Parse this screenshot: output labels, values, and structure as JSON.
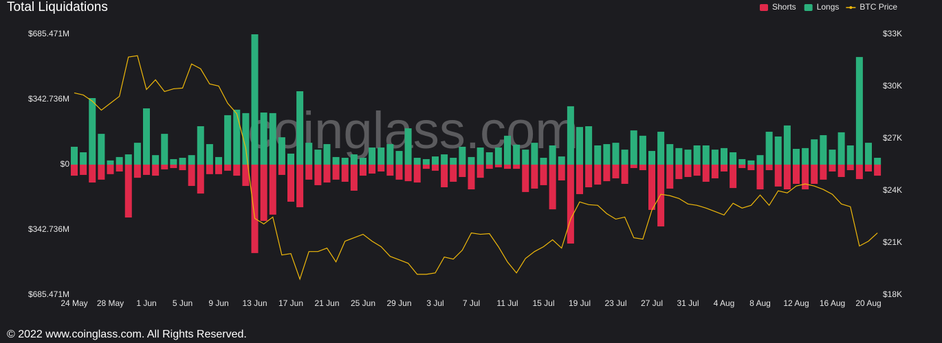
{
  "chart_data": {
    "type": "bar",
    "title": "Total Liquidations",
    "watermark": "coinglass.com",
    "footer": "© 2022 www.coinglass.com. All Rights Reserved.",
    "categories": [
      "24 May",
      null,
      null,
      null,
      "28 May",
      null,
      null,
      null,
      "1 Jun",
      null,
      null,
      null,
      "5 Jun",
      null,
      null,
      null,
      "9 Jun",
      null,
      null,
      null,
      "13 Jun",
      null,
      null,
      null,
      "17 Jun",
      null,
      null,
      null,
      "21 Jun",
      null,
      null,
      null,
      "25 Jun",
      null,
      null,
      null,
      "29 Jun",
      null,
      null,
      null,
      "3 Jul",
      null,
      null,
      null,
      "7 Jul",
      null,
      null,
      null,
      "11 Jul",
      null,
      null,
      null,
      "15 Jul",
      null,
      null,
      null,
      "19 Jul",
      null,
      null,
      null,
      "23 Jul",
      null,
      null,
      null,
      "27 Jul",
      null,
      null,
      null,
      "31 Jul",
      null,
      null,
      null,
      "4 Aug",
      null,
      null,
      null,
      "8 Aug",
      null,
      null,
      null,
      "12 Aug",
      null,
      null,
      null,
      "16 Aug",
      null,
      null,
      null,
      "20 Aug",
      null
    ],
    "series": [
      {
        "name": "Shorts",
        "color": "#e0294a",
        "values": [
          -58,
          -54,
          -94,
          -79,
          -50,
          -36,
          -278,
          -69,
          -54,
          -58,
          -25,
          -18,
          -29,
          -112,
          -152,
          -50,
          -50,
          -32,
          -58,
          -112,
          -465,
          -296,
          -263,
          -54,
          -195,
          -224,
          -79,
          -108,
          -94,
          -79,
          -90,
          -137,
          -58,
          -47,
          -36,
          -58,
          -79,
          -87,
          -94,
          -22,
          -32,
          -119,
          -90,
          -65,
          -130,
          -69,
          -22,
          -14,
          -22,
          -22,
          -144,
          -126,
          -108,
          -235,
          -83,
          -415,
          -155,
          -119,
          -105,
          -87,
          -72,
          -101,
          -18,
          -29,
          -238,
          -325,
          -126,
          -76,
          -65,
          -58,
          -90,
          -72,
          -36,
          -123,
          -18,
          -29,
          -130,
          -29,
          -115,
          -130,
          -101,
          -130,
          -101,
          -79,
          -36,
          -65,
          -29,
          -76,
          -36,
          -58
        ]
      },
      {
        "name": "Longs",
        "color": "#2bb07c",
        "values": [
          94,
          65,
          350,
          162,
          22,
          40,
          54,
          115,
          296,
          50,
          162,
          29,
          36,
          50,
          202,
          108,
          40,
          260,
          289,
          271,
          685.471,
          274,
          271,
          144,
          58,
          386,
          115,
          79,
          108,
          40,
          36,
          54,
          36,
          90,
          90,
          108,
          72,
          191,
          36,
          29,
          43,
          54,
          36,
          94,
          40,
          90,
          65,
          90,
          152,
          105,
          79,
          115,
          36,
          101,
          43,
          307,
          198,
          202,
          101,
          108,
          115,
          79,
          180,
          152,
          72,
          173,
          108,
          87,
          79,
          101,
          101,
          79,
          87,
          65,
          29,
          22,
          50,
          173,
          148,
          206,
          83,
          87,
          133,
          155,
          79,
          170,
          101,
          566,
          115,
          36
        ]
      },
      {
        "name": "BTC Price",
        "color": "#f0b90b",
        "axis": "y2",
        "values": [
          29627,
          29508,
          29151,
          28635,
          29032,
          29429,
          31690,
          31770,
          29825,
          30381,
          29706,
          29865,
          29905,
          31294,
          31016,
          30143,
          30024,
          29032,
          28437,
          26452,
          22405,
          22087,
          22484,
          20302,
          20381,
          18913,
          20500,
          20500,
          20698,
          19905,
          21095,
          21294,
          21492,
          21095,
          20778,
          20222,
          20024,
          19825,
          19190,
          19190,
          19270,
          20183,
          20063,
          20579,
          21571,
          21492,
          21532,
          20778,
          19905,
          19270,
          20103,
          20500,
          20778,
          21175,
          20698,
          22365,
          23357,
          23198,
          23159,
          22683,
          22365,
          22484,
          21294,
          21214,
          22881,
          23794,
          23714,
          23556,
          23238,
          23159,
          23000,
          22802,
          22603,
          23278,
          23000,
          23159,
          23754,
          23159,
          23992,
          23873,
          24270,
          24389,
          24270,
          24071,
          23794,
          23238,
          23079,
          20817,
          21095,
          21571
        ]
      }
    ],
    "ylim": [
      -685.471,
      685.471
    ],
    "yticks": [
      {
        "value": -685.471,
        "label": "$685.471M"
      },
      {
        "value": -342.736,
        "label": "$342.736M"
      },
      {
        "value": 0,
        "label": "$0"
      },
      {
        "value": 342.736,
        "label": "$342.736M"
      },
      {
        "value": 685.471,
        "label": "$685.471M"
      }
    ],
    "y2lim": [
      18000,
      33000
    ],
    "y2ticks": [
      {
        "value": 18000,
        "label": "$18K"
      },
      {
        "value": 21000,
        "label": "$21K"
      },
      {
        "value": 24000,
        "label": "$24K"
      },
      {
        "value": 27000,
        "label": "$27K"
      },
      {
        "value": 30000,
        "label": "$30K"
      },
      {
        "value": 33000,
        "label": "$33K"
      }
    ],
    "grid": false,
    "legend": "top-right"
  }
}
